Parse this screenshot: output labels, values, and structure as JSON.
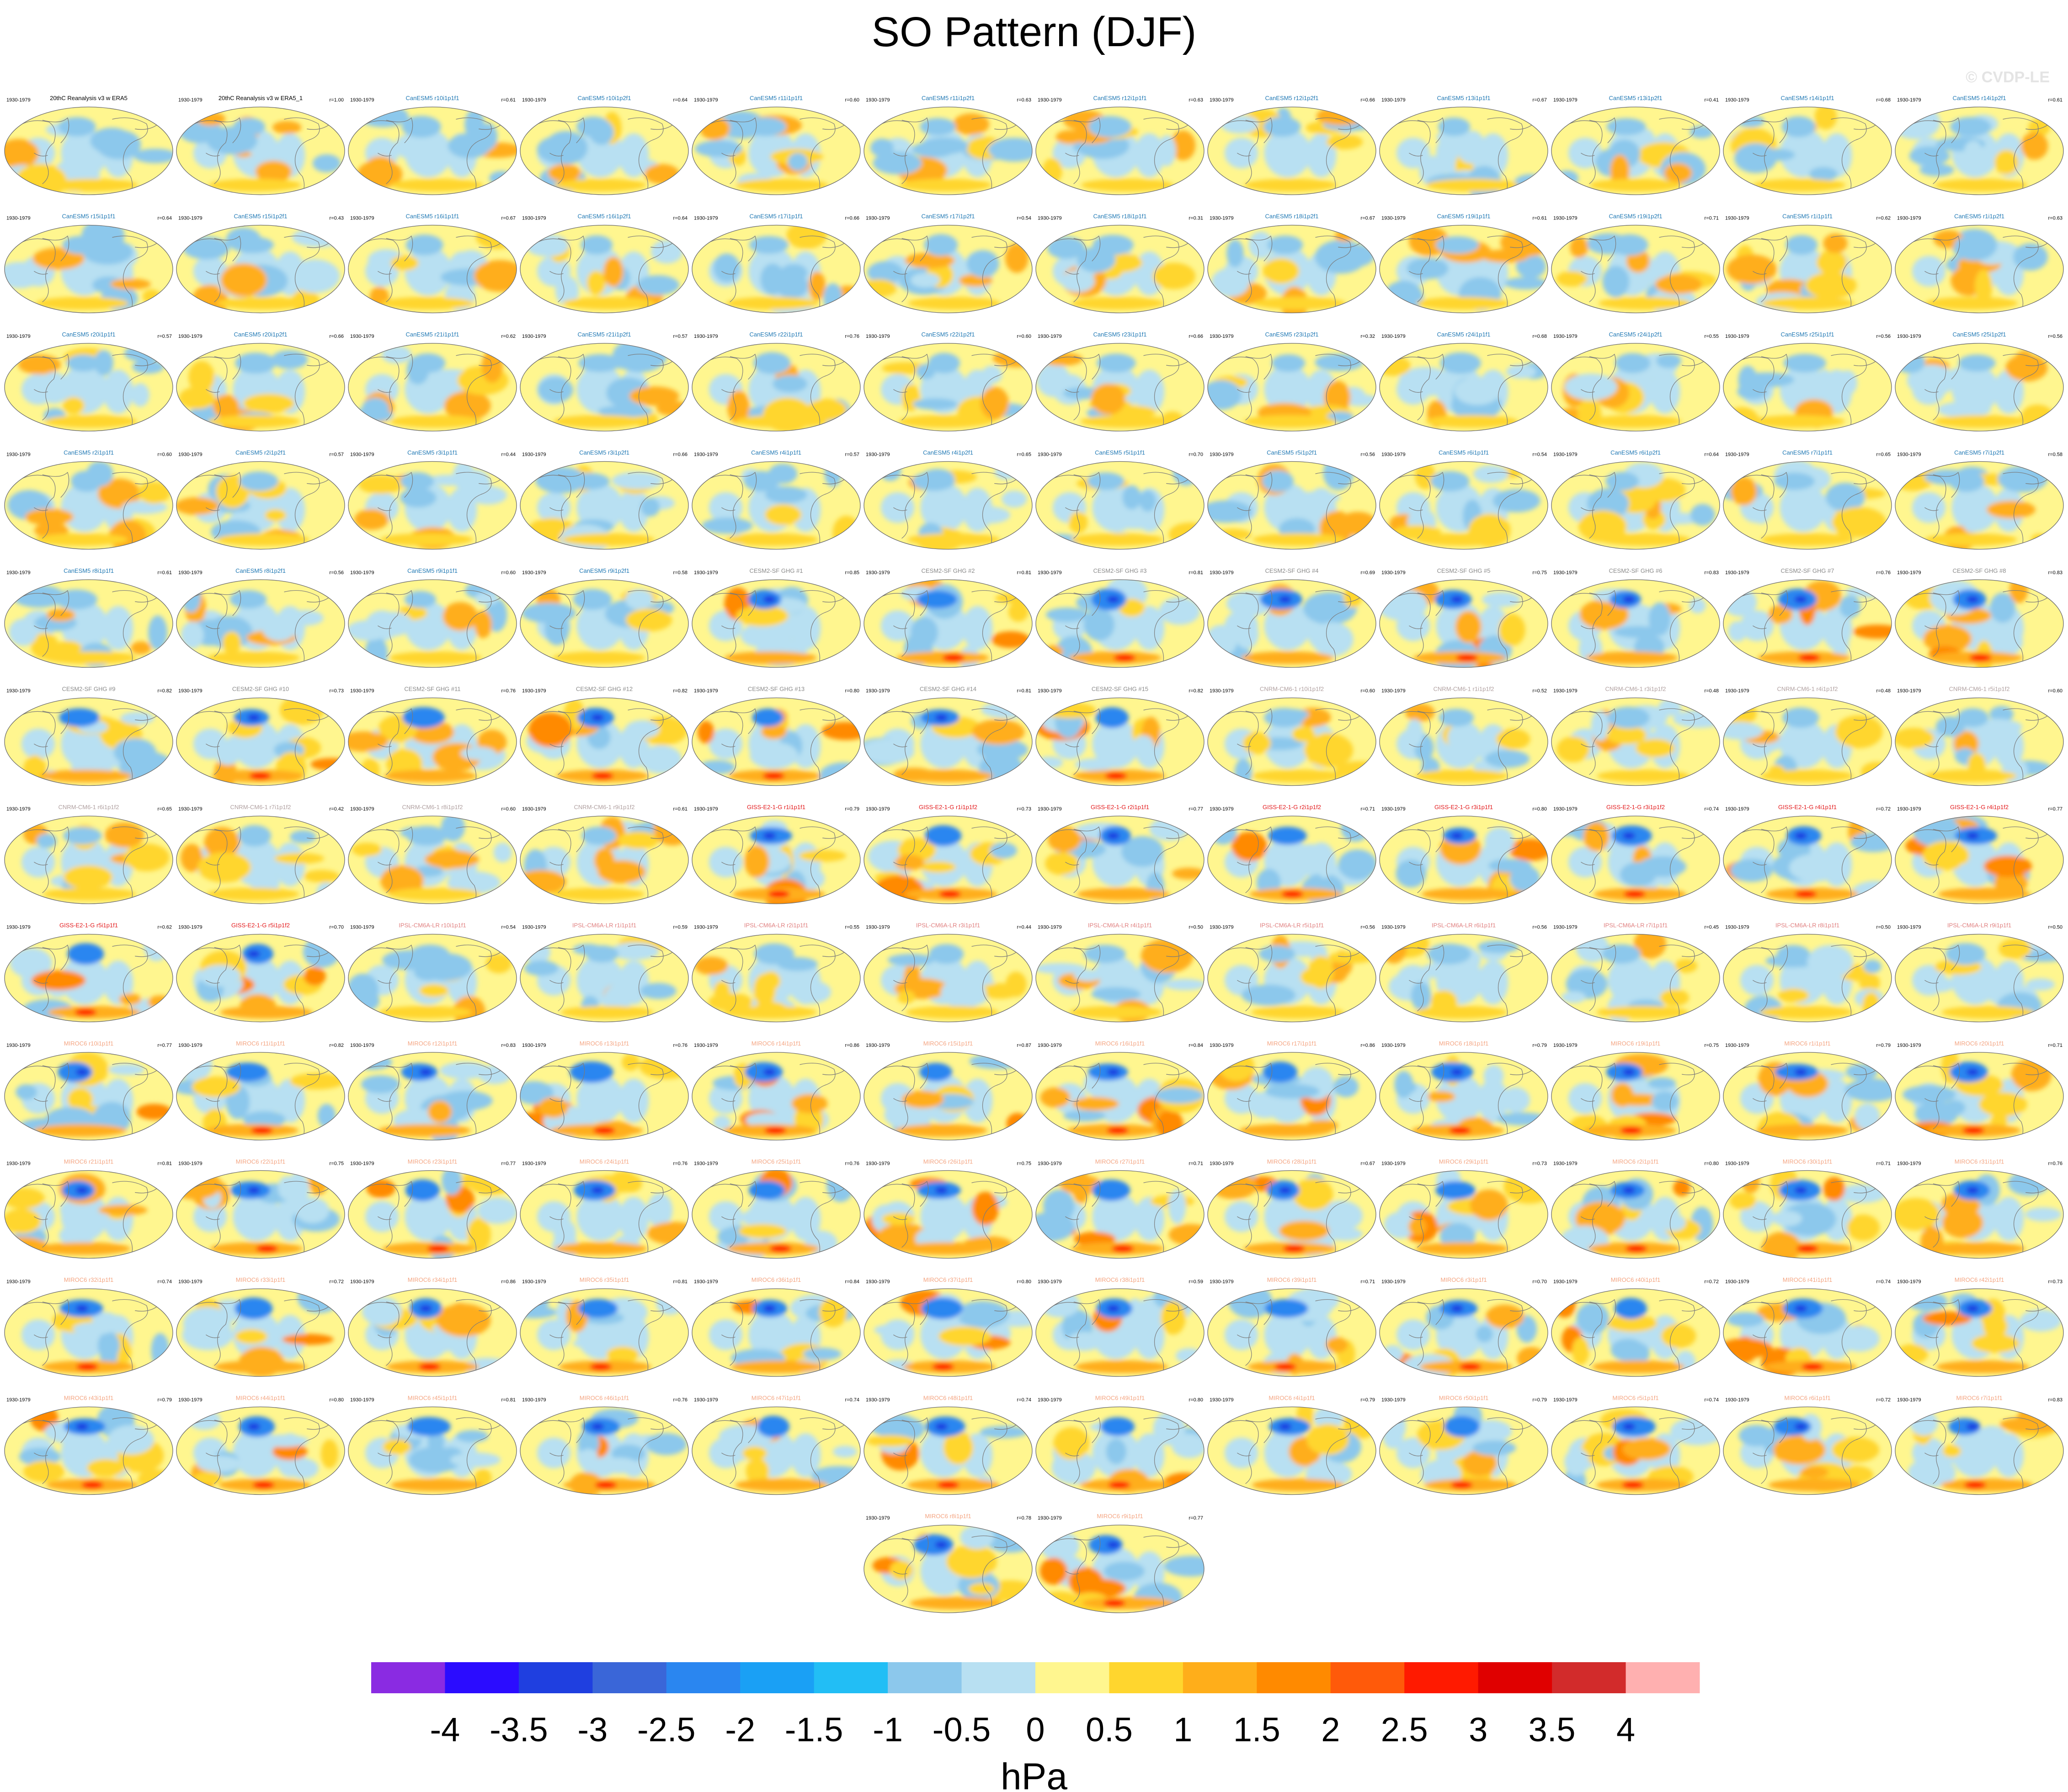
{
  "title": "SO Pattern (DJF)",
  "watermark": "© CVDP-LE",
  "period": "1930-1979",
  "colors": {
    "reanalysis": "#000000",
    "CanESM5": "#1f78b4",
    "CESM2-SF GHG": "#8a8a8a",
    "CNRM-CM6-1": "#b0a0a0",
    "GISS-E2-1-G": "#e31a1c",
    "IPSL-CM6A-LR": "#e08080",
    "MIROC6": "#f4a582",
    "ocean_neutral": "#fff68f",
    "coast": "#7a7a7a"
  },
  "panels": [
    {
      "label": "20thC Reanalysis v3 w ERA5",
      "r": "",
      "group": "reanalysis"
    },
    {
      "label": "20thC Reanalysis v3 w ERA5_1",
      "r": "r=1.00",
      "group": "reanalysis"
    },
    {
      "label": "CanESM5 r10i1p1f1",
      "r": "r=0.61",
      "group": "CanESM5"
    },
    {
      "label": "CanESM5 r10i1p2f1",
      "r": "r=0.64",
      "group": "CanESM5"
    },
    {
      "label": "CanESM5 r11i1p1f1",
      "r": "r=0.60",
      "group": "CanESM5"
    },
    {
      "label": "CanESM5 r11i1p2f1",
      "r": "r=0.63",
      "group": "CanESM5"
    },
    {
      "label": "CanESM5 r12i1p1f1",
      "r": "r=0.63",
      "group": "CanESM5"
    },
    {
      "label": "CanESM5 r12i1p2f1",
      "r": "r=0.66",
      "group": "CanESM5"
    },
    {
      "label": "CanESM5 r13i1p1f1",
      "r": "r=0.67",
      "group": "CanESM5"
    },
    {
      "label": "CanESM5 r13i1p2f1",
      "r": "r=0.41",
      "group": "CanESM5"
    },
    {
      "label": "CanESM5 r14i1p1f1",
      "r": "r=0.68",
      "group": "CanESM5"
    },
    {
      "label": "CanESM5 r14i1p2f1",
      "r": "r=0.61",
      "group": "CanESM5"
    },
    {
      "label": "CanESM5 r15i1p1f1",
      "r": "r=0.64",
      "group": "CanESM5"
    },
    {
      "label": "CanESM5 r15i1p2f1",
      "r": "r=0.43",
      "group": "CanESM5"
    },
    {
      "label": "CanESM5 r16i1p1f1",
      "r": "r=0.67",
      "group": "CanESM5"
    },
    {
      "label": "CanESM5 r16i1p2f1",
      "r": "r=0.64",
      "group": "CanESM5"
    },
    {
      "label": "CanESM5 r17i1p1f1",
      "r": "r=0.66",
      "group": "CanESM5"
    },
    {
      "label": "CanESM5 r17i1p2f1",
      "r": "r=0.54",
      "group": "CanESM5"
    },
    {
      "label": "CanESM5 r18i1p1f1",
      "r": "r=0.31",
      "group": "CanESM5"
    },
    {
      "label": "CanESM5 r18i1p2f1",
      "r": "r=0.67",
      "group": "CanESM5"
    },
    {
      "label": "CanESM5 r19i1p1f1",
      "r": "r=0.61",
      "group": "CanESM5"
    },
    {
      "label": "CanESM5 r19i1p2f1",
      "r": "r=0.71",
      "group": "CanESM5"
    },
    {
      "label": "CanESM5 r1i1p1f1",
      "r": "r=0.62",
      "group": "CanESM5"
    },
    {
      "label": "CanESM5 r1i1p2f1",
      "r": "r=0.63",
      "group": "CanESM5"
    },
    {
      "label": "CanESM5 r20i1p1f1",
      "r": "r=0.57",
      "group": "CanESM5"
    },
    {
      "label": "CanESM5 r20i1p2f1",
      "r": "r=0.66",
      "group": "CanESM5"
    },
    {
      "label": "CanESM5 r21i1p1f1",
      "r": "r=0.62",
      "group": "CanESM5"
    },
    {
      "label": "CanESM5 r21i1p2f1",
      "r": "r=0.57",
      "group": "CanESM5"
    },
    {
      "label": "CanESM5 r22i1p1f1",
      "r": "r=0.76",
      "group": "CanESM5"
    },
    {
      "label": "CanESM5 r22i1p2f1",
      "r": "r=0.60",
      "group": "CanESM5"
    },
    {
      "label": "CanESM5 r23i1p1f1",
      "r": "r=0.66",
      "group": "CanESM5"
    },
    {
      "label": "CanESM5 r23i1p2f1",
      "r": "r=0.32",
      "group": "CanESM5"
    },
    {
      "label": "CanESM5 r24i1p1f1",
      "r": "r=0.68",
      "group": "CanESM5"
    },
    {
      "label": "CanESM5 r24i1p2f1",
      "r": "r=0.55",
      "group": "CanESM5"
    },
    {
      "label": "CanESM5 r25i1p1f1",
      "r": "r=0.56",
      "group": "CanESM5"
    },
    {
      "label": "CanESM5 r25i1p2f1",
      "r": "r=0.56",
      "group": "CanESM5"
    },
    {
      "label": "CanESM5 r2i1p1f1",
      "r": "r=0.60",
      "group": "CanESM5"
    },
    {
      "label": "CanESM5 r2i1p2f1",
      "r": "r=0.57",
      "group": "CanESM5"
    },
    {
      "label": "CanESM5 r3i1p1f1",
      "r": "r=0.44",
      "group": "CanESM5"
    },
    {
      "label": "CanESM5 r3i1p2f1",
      "r": "r=0.66",
      "group": "CanESM5"
    },
    {
      "label": "CanESM5 r4i1p1f1",
      "r": "r=0.57",
      "group": "CanESM5"
    },
    {
      "label": "CanESM5 r4i1p2f1",
      "r": "r=0.65",
      "group": "CanESM5"
    },
    {
      "label": "CanESM5 r5i1p1f1",
      "r": "r=0.70",
      "group": "CanESM5"
    },
    {
      "label": "CanESM5 r5i1p2f1",
      "r": "r=0.56",
      "group": "CanESM5"
    },
    {
      "label": "CanESM5 r6i1p1f1",
      "r": "r=0.54",
      "group": "CanESM5"
    },
    {
      "label": "CanESM5 r6i1p2f1",
      "r": "r=0.64",
      "group": "CanESM5"
    },
    {
      "label": "CanESM5 r7i1p1f1",
      "r": "r=0.65",
      "group": "CanESM5"
    },
    {
      "label": "CanESM5 r7i1p2f1",
      "r": "r=0.58",
      "group": "CanESM5"
    },
    {
      "label": "CanESM5 r8i1p1f1",
      "r": "r=0.61",
      "group": "CanESM5"
    },
    {
      "label": "CanESM5 r8i1p2f1",
      "r": "r=0.56",
      "group": "CanESM5"
    },
    {
      "label": "CanESM5 r9i1p1f1",
      "r": "r=0.60",
      "group": "CanESM5"
    },
    {
      "label": "CanESM5 r9i1p2f1",
      "r": "r=0.58",
      "group": "CanESM5"
    },
    {
      "label": "CESM2-SF GHG #1",
      "r": "r=0.85",
      "group": "CESM2-SF GHG"
    },
    {
      "label": "CESM2-SF GHG #2",
      "r": "r=0.81",
      "group": "CESM2-SF GHG"
    },
    {
      "label": "CESM2-SF GHG #3",
      "r": "r=0.81",
      "group": "CESM2-SF GHG"
    },
    {
      "label": "CESM2-SF GHG #4",
      "r": "r=0.69",
      "group": "CESM2-SF GHG"
    },
    {
      "label": "CESM2-SF GHG #5",
      "r": "r=0.75",
      "group": "CESM2-SF GHG"
    },
    {
      "label": "CESM2-SF GHG #6",
      "r": "r=0.83",
      "group": "CESM2-SF GHG"
    },
    {
      "label": "CESM2-SF GHG #7",
      "r": "r=0.76",
      "group": "CESM2-SF GHG"
    },
    {
      "label": "CESM2-SF GHG #8",
      "r": "r=0.83",
      "group": "CESM2-SF GHG"
    },
    {
      "label": "CESM2-SF GHG #9",
      "r": "r=0.82",
      "group": "CESM2-SF GHG"
    },
    {
      "label": "CESM2-SF GHG #10",
      "r": "r=0.73",
      "group": "CESM2-SF GHG"
    },
    {
      "label": "CESM2-SF GHG #11",
      "r": "r=0.76",
      "group": "CESM2-SF GHG"
    },
    {
      "label": "CESM2-SF GHG #12",
      "r": "r=0.82",
      "group": "CESM2-SF GHG"
    },
    {
      "label": "CESM2-SF GHG #13",
      "r": "r=0.80",
      "group": "CESM2-SF GHG"
    },
    {
      "label": "CESM2-SF GHG #14",
      "r": "r=0.81",
      "group": "CESM2-SF GHG"
    },
    {
      "label": "CESM2-SF GHG #15",
      "r": "r=0.82",
      "group": "CESM2-SF GHG"
    },
    {
      "label": "CNRM-CM6-1 r10i1p1f2",
      "r": "r=0.60",
      "group": "CNRM-CM6-1"
    },
    {
      "label": "CNRM-CM6-1 r1i1p1f2",
      "r": "r=0.52",
      "group": "CNRM-CM6-1"
    },
    {
      "label": "CNRM-CM6-1 r3i1p1f2",
      "r": "r=0.48",
      "group": "CNRM-CM6-1"
    },
    {
      "label": "CNRM-CM6-1 r4i1p1f2",
      "r": "r=0.48",
      "group": "CNRM-CM6-1"
    },
    {
      "label": "CNRM-CM6-1 r5i1p1f2",
      "r": "r=0.60",
      "group": "CNRM-CM6-1"
    },
    {
      "label": "CNRM-CM6-1 r6i1p1f2",
      "r": "r=0.65",
      "group": "CNRM-CM6-1"
    },
    {
      "label": "CNRM-CM6-1 r7i1p1f2",
      "r": "r=0.42",
      "group": "CNRM-CM6-1"
    },
    {
      "label": "CNRM-CM6-1 r8i1p1f2",
      "r": "r=0.60",
      "group": "CNRM-CM6-1"
    },
    {
      "label": "CNRM-CM6-1 r9i1p1f2",
      "r": "r=0.61",
      "group": "CNRM-CM6-1"
    },
    {
      "label": "GISS-E2-1-G r1i1p1f1",
      "r": "r=0.79",
      "group": "GISS-E2-1-G"
    },
    {
      "label": "GISS-E2-1-G r1i1p1f2",
      "r": "r=0.73",
      "group": "GISS-E2-1-G"
    },
    {
      "label": "GISS-E2-1-G r2i1p1f1",
      "r": "r=0.77",
      "group": "GISS-E2-1-G"
    },
    {
      "label": "GISS-E2-1-G r2i1p1f2",
      "r": "r=0.71",
      "group": "GISS-E2-1-G"
    },
    {
      "label": "GISS-E2-1-G r3i1p1f1",
      "r": "r=0.80",
      "group": "GISS-E2-1-G"
    },
    {
      "label": "GISS-E2-1-G r3i1p1f2",
      "r": "r=0.74",
      "group": "GISS-E2-1-G"
    },
    {
      "label": "GISS-E2-1-G r4i1p1f1",
      "r": "r=0.72",
      "group": "GISS-E2-1-G"
    },
    {
      "label": "GISS-E2-1-G r4i1p1f2",
      "r": "r=0.77",
      "group": "GISS-E2-1-G"
    },
    {
      "label": "GISS-E2-1-G r5i1p1f1",
      "r": "r=0.62",
      "group": "GISS-E2-1-G"
    },
    {
      "label": "GISS-E2-1-G r5i1p1f2",
      "r": "r=0.70",
      "group": "GISS-E2-1-G"
    },
    {
      "label": "IPSL-CM6A-LR r10i1p1f1",
      "r": "r=0.54",
      "group": "IPSL-CM6A-LR"
    },
    {
      "label": "IPSL-CM6A-LR r1i1p1f1",
      "r": "r=0.59",
      "group": "IPSL-CM6A-LR"
    },
    {
      "label": "IPSL-CM6A-LR r2i1p1f1",
      "r": "r=0.55",
      "group": "IPSL-CM6A-LR"
    },
    {
      "label": "IPSL-CM6A-LR r3i1p1f1",
      "r": "r=0.44",
      "group": "IPSL-CM6A-LR"
    },
    {
      "label": "IPSL-CM6A-LR r4i1p1f1",
      "r": "r=0.50",
      "group": "IPSL-CM6A-LR"
    },
    {
      "label": "IPSL-CM6A-LR r5i1p1f1",
      "r": "r=0.56",
      "group": "IPSL-CM6A-LR"
    },
    {
      "label": "IPSL-CM6A-LR r6i1p1f1",
      "r": "r=0.56",
      "group": "IPSL-CM6A-LR"
    },
    {
      "label": "IPSL-CM6A-LR r7i1p1f1",
      "r": "r=0.45",
      "group": "IPSL-CM6A-LR"
    },
    {
      "label": "IPSL-CM6A-LR r8i1p1f1",
      "r": "r=0.50",
      "group": "IPSL-CM6A-LR"
    },
    {
      "label": "IPSL-CM6A-LR r9i1p1f1",
      "r": "r=0.50",
      "group": "IPSL-CM6A-LR"
    },
    {
      "label": "MIROC6 r10i1p1f1",
      "r": "r=0.77",
      "group": "MIROC6"
    },
    {
      "label": "MIROC6 r11i1p1f1",
      "r": "r=0.82",
      "group": "MIROC6"
    },
    {
      "label": "MIROC6 r12i1p1f1",
      "r": "r=0.83",
      "group": "MIROC6"
    },
    {
      "label": "MIROC6 r13i1p1f1",
      "r": "r=0.76",
      "group": "MIROC6"
    },
    {
      "label": "MIROC6 r14i1p1f1",
      "r": "r=0.86",
      "group": "MIROC6"
    },
    {
      "label": "MIROC6 r15i1p1f1",
      "r": "r=0.87",
      "group": "MIROC6"
    },
    {
      "label": "MIROC6 r16i1p1f1",
      "r": "r=0.84",
      "group": "MIROC6"
    },
    {
      "label": "MIROC6 r17i1p1f1",
      "r": "r=0.86",
      "group": "MIROC6"
    },
    {
      "label": "MIROC6 r18i1p1f1",
      "r": "r=0.79",
      "group": "MIROC6"
    },
    {
      "label": "MIROC6 r19i1p1f1",
      "r": "r=0.75",
      "group": "MIROC6"
    },
    {
      "label": "MIROC6 r1i1p1f1",
      "r": "r=0.79",
      "group": "MIROC6"
    },
    {
      "label": "MIROC6 r20i1p1f1",
      "r": "r=0.71",
      "group": "MIROC6"
    },
    {
      "label": "MIROC6 r21i1p1f1",
      "r": "r=0.81",
      "group": "MIROC6"
    },
    {
      "label": "MIROC6 r22i1p1f1",
      "r": "r=0.75",
      "group": "MIROC6"
    },
    {
      "label": "MIROC6 r23i1p1f1",
      "r": "r=0.77",
      "group": "MIROC6"
    },
    {
      "label": "MIROC6 r24i1p1f1",
      "r": "r=0.76",
      "group": "MIROC6"
    },
    {
      "label": "MIROC6 r25i1p1f1",
      "r": "r=0.76",
      "group": "MIROC6"
    },
    {
      "label": "MIROC6 r26i1p1f1",
      "r": "r=0.75",
      "group": "MIROC6"
    },
    {
      "label": "MIROC6 r27i1p1f1",
      "r": "r=0.71",
      "group": "MIROC6"
    },
    {
      "label": "MIROC6 r28i1p1f1",
      "r": "r=0.67",
      "group": "MIROC6"
    },
    {
      "label": "MIROC6 r29i1p1f1",
      "r": "r=0.73",
      "group": "MIROC6"
    },
    {
      "label": "MIROC6 r2i1p1f1",
      "r": "r=0.80",
      "group": "MIROC6"
    },
    {
      "label": "MIROC6 r30i1p1f1",
      "r": "r=0.71",
      "group": "MIROC6"
    },
    {
      "label": "MIROC6 r31i1p1f1",
      "r": "r=0.76",
      "group": "MIROC6"
    },
    {
      "label": "MIROC6 r32i1p1f1",
      "r": "r=0.74",
      "group": "MIROC6"
    },
    {
      "label": "MIROC6 r33i1p1f1",
      "r": "r=0.72",
      "group": "MIROC6"
    },
    {
      "label": "MIROC6 r34i1p1f1",
      "r": "r=0.86",
      "group": "MIROC6"
    },
    {
      "label": "MIROC6 r35i1p1f1",
      "r": "r=0.81",
      "group": "MIROC6"
    },
    {
      "label": "MIROC6 r36i1p1f1",
      "r": "r=0.84",
      "group": "MIROC6"
    },
    {
      "label": "MIROC6 r37i1p1f1",
      "r": "r=0.80",
      "group": "MIROC6"
    },
    {
      "label": "MIROC6 r38i1p1f1",
      "r": "r=0.59",
      "group": "MIROC6"
    },
    {
      "label": "MIROC6 r39i1p1f1",
      "r": "r=0.71",
      "group": "MIROC6"
    },
    {
      "label": "MIROC6 r3i1p1f1",
      "r": "r=0.70",
      "group": "MIROC6"
    },
    {
      "label": "MIROC6 r40i1p1f1",
      "r": "r=0.72",
      "group": "MIROC6"
    },
    {
      "label": "MIROC6 r41i1p1f1",
      "r": "r=0.74",
      "group": "MIROC6"
    },
    {
      "label": "MIROC6 r42i1p1f1",
      "r": "r=0.73",
      "group": "MIROC6"
    },
    {
      "label": "MIROC6 r43i1p1f1",
      "r": "r=0.79",
      "group": "MIROC6"
    },
    {
      "label": "MIROC6 r44i1p1f1",
      "r": "r=0.80",
      "group": "MIROC6"
    },
    {
      "label": "MIROC6 r45i1p1f1",
      "r": "r=0.81",
      "group": "MIROC6"
    },
    {
      "label": "MIROC6 r46i1p1f1",
      "r": "r=0.76",
      "group": "MIROC6"
    },
    {
      "label": "MIROC6 r47i1p1f1",
      "r": "r=0.74",
      "group": "MIROC6"
    },
    {
      "label": "MIROC6 r48i1p1f1",
      "r": "r=0.74",
      "group": "MIROC6"
    },
    {
      "label": "MIROC6 r49i1p1f1",
      "r": "r=0.80",
      "group": "MIROC6"
    },
    {
      "label": "MIROC6 r4i1p1f1",
      "r": "r=0.79",
      "group": "MIROC6"
    },
    {
      "label": "MIROC6 r50i1p1f1",
      "r": "r=0.79",
      "group": "MIROC6"
    },
    {
      "label": "MIROC6 r5i1p1f1",
      "r": "r=0.74",
      "group": "MIROC6"
    },
    {
      "label": "MIROC6 r6i1p1f1",
      "r": "r=0.72",
      "group": "MIROC6"
    },
    {
      "label": "MIROC6 r7i1p1f1",
      "r": "r=0.83",
      "group": "MIROC6"
    },
    {
      "label": "MIROC6 r8i1p1f1",
      "r": "r=0.78",
      "group": "MIROC6"
    },
    {
      "label": "MIROC6 r9i1p1f1",
      "r": "r=0.77",
      "group": "MIROC6"
    }
  ],
  "chart_data": {
    "type": "heatmap",
    "title": "SO Pattern (DJF)",
    "units_label": "hPa",
    "colorbar": {
      "ticks": [
        "-4",
        "-3.5",
        "-3",
        "-2.5",
        "-2",
        "-1.5",
        "-1",
        "-0.5",
        "0",
        "0.5",
        "1",
        "1.5",
        "2",
        "2.5",
        "3",
        "3.5",
        "4"
      ],
      "levels": [
        -4,
        -3.5,
        -3,
        -2.5,
        -2,
        -1.5,
        -1,
        -0.5,
        0,
        0.5,
        1,
        1.5,
        2,
        2.5,
        3,
        3.5,
        4
      ],
      "colors": [
        "#8a2be2",
        "#2b0cff",
        "#1f3fe0",
        "#3a66d8",
        "#2a86f0",
        "#1aa0f5",
        "#22bef5",
        "#8cc8ec",
        "#b8e0f2",
        "#fff68f",
        "#ffd62e",
        "#ffae1a",
        "#ff8a00",
        "#ff5a0a",
        "#ff1a00",
        "#e00000",
        "#d22b2b",
        "#ffb0b0"
      ]
    },
    "panel_count": 146,
    "period": "1930-1979"
  }
}
